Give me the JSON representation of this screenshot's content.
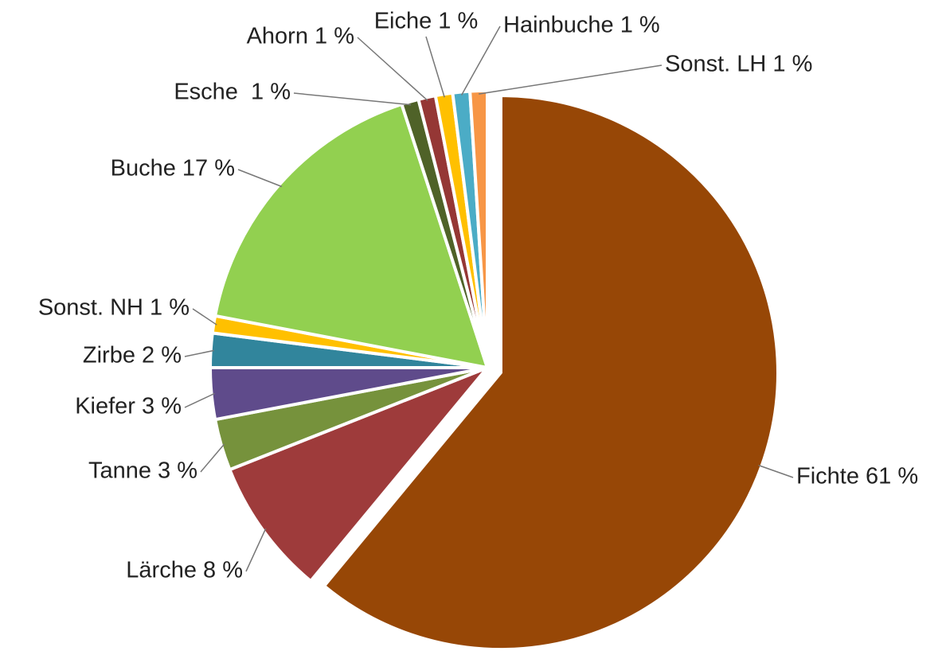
{
  "chart_data": {
    "type": "pie",
    "values": [
      61,
      8,
      3,
      3,
      2,
      1,
      17,
      1,
      1,
      1,
      1,
      1
    ],
    "value_labels": [
      "Fichte 61 %",
      "Lärche 8 %",
      "Tanne 3 %",
      "Kiefer 3 %",
      "Zirbe 2 %",
      "Sonst. NH 1 %",
      "Buche 17 %",
      "Esche  1 %",
      "Ahorn 1 %",
      "Eiche 1 %",
      "Hainbuche 1 %",
      "Sonst. LH 1 %"
    ],
    "colors": [
      "#974706",
      "#9e3b3b",
      "#76923c",
      "#5f4b8b",
      "#31859c",
      "#ffc000",
      "#92d050",
      "#4f6228",
      "#953735",
      "#ffc000",
      "#4bacc6",
      "#f79646"
    ]
  }
}
